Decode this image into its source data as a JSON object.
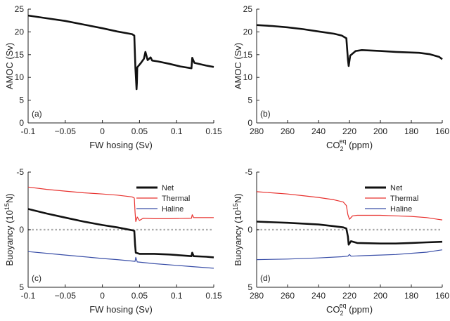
{
  "chart_data": [
    {
      "type": "line",
      "panel": "(a)",
      "xlabel": "FW hosing (Sv)",
      "ylabel": "AMOC (Sv)",
      "xlim": [
        -0.1,
        0.15
      ],
      "ylim": [
        0,
        25
      ],
      "y_inverted": false,
      "xticks": [
        -0.1,
        -0.05,
        0,
        0.05,
        0.1,
        0.15
      ],
      "xtick_labels": [
        "-0.1",
        "−0.05",
        "0",
        "0.05",
        "0.1",
        "0.15"
      ],
      "yticks": [
        0,
        5,
        10,
        15,
        20,
        25
      ],
      "ytick_labels": [
        "0",
        "5",
        "10",
        "15",
        "20",
        "25"
      ],
      "series": [
        {
          "color": "#111111",
          "points": [
            [
              -0.1,
              23.6
            ],
            [
              -0.075,
              23.0
            ],
            [
              -0.05,
              22.4
            ],
            [
              -0.025,
              21.6
            ],
            [
              0,
              20.8
            ],
            [
              0.02,
              20.1
            ],
            [
              0.04,
              19.5
            ],
            [
              0.043,
              19.2
            ],
            [
              0.0445,
              12.0
            ],
            [
              0.046,
              7.4
            ],
            [
              0.0465,
              8.8
            ],
            [
              0.047,
              12.2
            ],
            [
              0.052,
              13.2
            ],
            [
              0.056,
              14.1
            ],
            [
              0.058,
              15.6
            ],
            [
              0.061,
              13.8
            ],
            [
              0.065,
              14.4
            ],
            [
              0.067,
              13.7
            ],
            [
              0.075,
              13.5
            ],
            [
              0.09,
              13.0
            ],
            [
              0.105,
              12.4
            ],
            [
              0.12,
              12.0
            ],
            [
              0.121,
              14.3
            ],
            [
              0.124,
              13.2
            ],
            [
              0.14,
              12.6
            ],
            [
              0.15,
              12.3
            ]
          ]
        }
      ]
    },
    {
      "type": "line",
      "panel": "(b)",
      "xlabel": "CO",
      "xlabel_sub": "2",
      "xlabel_sup": "eq",
      "xlabel_suffix": " (ppm)",
      "ylabel": "AMOC (Sv)",
      "xlim": [
        280,
        160
      ],
      "ylim": [
        0,
        25
      ],
      "y_inverted": false,
      "xticks": [
        280,
        260,
        240,
        220,
        200,
        180,
        160
      ],
      "xtick_labels": [
        "280",
        "260",
        "240",
        "220",
        "200",
        "180",
        "160"
      ],
      "yticks": [
        0,
        5,
        10,
        15,
        20,
        25
      ],
      "ytick_labels": [
        "0",
        "5",
        "10",
        "15",
        "20",
        "25"
      ],
      "series": [
        {
          "color": "#111111",
          "points": [
            [
              280,
              21.5
            ],
            [
              270,
              21.3
            ],
            [
              260,
              21.0
            ],
            [
              250,
              20.6
            ],
            [
              240,
              20.1
            ],
            [
              230,
              19.6
            ],
            [
              225,
              19.2
            ],
            [
              222,
              18.6
            ],
            [
              221,
              14.0
            ],
            [
              220.5,
              12.5
            ],
            [
              219.5,
              14.8
            ],
            [
              216,
              15.8
            ],
            [
              212,
              16.0
            ],
            [
              200,
              15.8
            ],
            [
              190,
              15.6
            ],
            [
              175,
              15.4
            ],
            [
              168,
              15.1
            ],
            [
              162,
              14.5
            ],
            [
              160,
              14.0
            ]
          ]
        }
      ]
    },
    {
      "type": "line",
      "panel": "(c)",
      "xlabel": "FW hosing (Sv)",
      "ylabel": "Buoyancy (10",
      "ylabel_sup": "15",
      "ylabel_suffix": "N)",
      "xlim": [
        -0.1,
        0.15
      ],
      "ylim": [
        -5,
        5
      ],
      "y_inverted": true,
      "xticks": [
        -0.1,
        -0.05,
        0,
        0.05,
        0.1,
        0.15
      ],
      "xtick_labels": [
        "-0.1",
        "−0.05",
        "0",
        "0.05",
        "0.1",
        "0.15"
      ],
      "yticks": [
        -5,
        0,
        5
      ],
      "ytick_labels": [
        "-5",
        "0",
        "5"
      ],
      "zero_line": true,
      "legend": {
        "location": "top-right",
        "entries": [
          "Net",
          "Thermal",
          "Haline"
        ]
      },
      "series": [
        {
          "name": "Net",
          "color": "#111111",
          "points": [
            [
              -0.1,
              -1.8
            ],
            [
              -0.075,
              -1.4
            ],
            [
              -0.05,
              -1.05
            ],
            [
              -0.025,
              -0.7
            ],
            [
              0,
              -0.4
            ],
            [
              0.02,
              -0.2
            ],
            [
              0.04,
              0.05
            ],
            [
              0.043,
              0.1
            ],
            [
              0.044,
              1.3
            ],
            [
              0.045,
              2.0
            ],
            [
              0.05,
              2.1
            ],
            [
              0.07,
              2.1
            ],
            [
              0.09,
              2.15
            ],
            [
              0.1,
              2.2
            ],
            [
              0.12,
              2.3
            ],
            [
              0.121,
              2.0
            ],
            [
              0.123,
              2.3
            ],
            [
              0.14,
              2.35
            ],
            [
              0.15,
              2.4
            ]
          ]
        },
        {
          "name": "Thermal",
          "color": "#e8322f",
          "points": [
            [
              -0.1,
              -3.7
            ],
            [
              -0.075,
              -3.5
            ],
            [
              -0.05,
              -3.35
            ],
            [
              -0.025,
              -3.2
            ],
            [
              0,
              -3.1
            ],
            [
              0.02,
              -3.0
            ],
            [
              0.04,
              -2.85
            ],
            [
              0.043,
              -2.75
            ],
            [
              0.044,
              -1.5
            ],
            [
              0.045,
              -0.7
            ],
            [
              0.047,
              -1.1
            ],
            [
              0.05,
              -0.8
            ],
            [
              0.055,
              -1.0
            ],
            [
              0.07,
              -0.95
            ],
            [
              0.09,
              -0.95
            ],
            [
              0.12,
              -1.0
            ],
            [
              0.121,
              -1.3
            ],
            [
              0.123,
              -1.05
            ],
            [
              0.15,
              -1.05
            ]
          ]
        },
        {
          "name": "Haline",
          "color": "#3a4fa8",
          "points": [
            [
              -0.1,
              1.9
            ],
            [
              -0.075,
              2.05
            ],
            [
              -0.05,
              2.2
            ],
            [
              -0.025,
              2.35
            ],
            [
              0,
              2.5
            ],
            [
              0.02,
              2.6
            ],
            [
              0.04,
              2.72
            ],
            [
              0.044,
              2.75
            ],
            [
              0.045,
              2.4
            ],
            [
              0.047,
              2.8
            ],
            [
              0.07,
              2.95
            ],
            [
              0.1,
              3.1
            ],
            [
              0.12,
              3.2
            ],
            [
              0.15,
              3.35
            ]
          ]
        }
      ]
    },
    {
      "type": "line",
      "panel": "(d)",
      "xlabel": "CO",
      "xlabel_sub": "2",
      "xlabel_sup": "eq",
      "xlabel_suffix": " (ppm)",
      "ylabel": "Buoyancy (10",
      "ylabel_sup": "15",
      "ylabel_suffix": "N)",
      "xlim": [
        280,
        160
      ],
      "ylim": [
        -5,
        5
      ],
      "y_inverted": true,
      "xticks": [
        280,
        260,
        240,
        220,
        200,
        180,
        160
      ],
      "xtick_labels": [
        "280",
        "260",
        "240",
        "220",
        "200",
        "180",
        "160"
      ],
      "yticks": [
        -5,
        0,
        5
      ],
      "ytick_labels": [
        "-5",
        "0",
        "5"
      ],
      "zero_line": true,
      "legend": {
        "location": "top-right",
        "entries": [
          "Net",
          "Thermal",
          "Haline"
        ]
      },
      "series": [
        {
          "name": "Net",
          "color": "#111111",
          "points": [
            [
              280,
              -0.7
            ],
            [
              260,
              -0.6
            ],
            [
              240,
              -0.45
            ],
            [
              230,
              -0.3
            ],
            [
              224,
              -0.2
            ],
            [
              222,
              -0.1
            ],
            [
              221,
              0.6
            ],
            [
              220.5,
              1.3
            ],
            [
              219,
              1.0
            ],
            [
              215,
              1.15
            ],
            [
              200,
              1.2
            ],
            [
              190,
              1.2
            ],
            [
              180,
              1.15
            ],
            [
              170,
              1.1
            ],
            [
              160,
              1.05
            ]
          ]
        },
        {
          "name": "Thermal",
          "color": "#e8322f",
          "points": [
            [
              280,
              -3.3
            ],
            [
              260,
              -3.1
            ],
            [
              250,
              -2.95
            ],
            [
              240,
              -2.8
            ],
            [
              230,
              -2.6
            ],
            [
              224,
              -2.4
            ],
            [
              222,
              -2.1
            ],
            [
              221,
              -1.3
            ],
            [
              220,
              -0.9
            ],
            [
              218,
              -1.2
            ],
            [
              215,
              -1.25
            ],
            [
              200,
              -1.25
            ],
            [
              190,
              -1.2
            ],
            [
              180,
              -1.15
            ],
            [
              170,
              -1.05
            ],
            [
              163,
              -0.9
            ],
            [
              160,
              -0.85
            ]
          ]
        },
        {
          "name": "Haline",
          "color": "#3a4fa8",
          "points": [
            [
              280,
              2.6
            ],
            [
              260,
              2.55
            ],
            [
              240,
              2.45
            ],
            [
              225,
              2.35
            ],
            [
              221,
              2.3
            ],
            [
              220,
              2.15
            ],
            [
              219,
              2.3
            ],
            [
              210,
              2.25
            ],
            [
              200,
              2.2
            ],
            [
              190,
              2.15
            ],
            [
              180,
              2.05
            ],
            [
              170,
              1.95
            ],
            [
              165,
              1.85
            ],
            [
              160,
              1.75
            ]
          ]
        }
      ]
    }
  ]
}
